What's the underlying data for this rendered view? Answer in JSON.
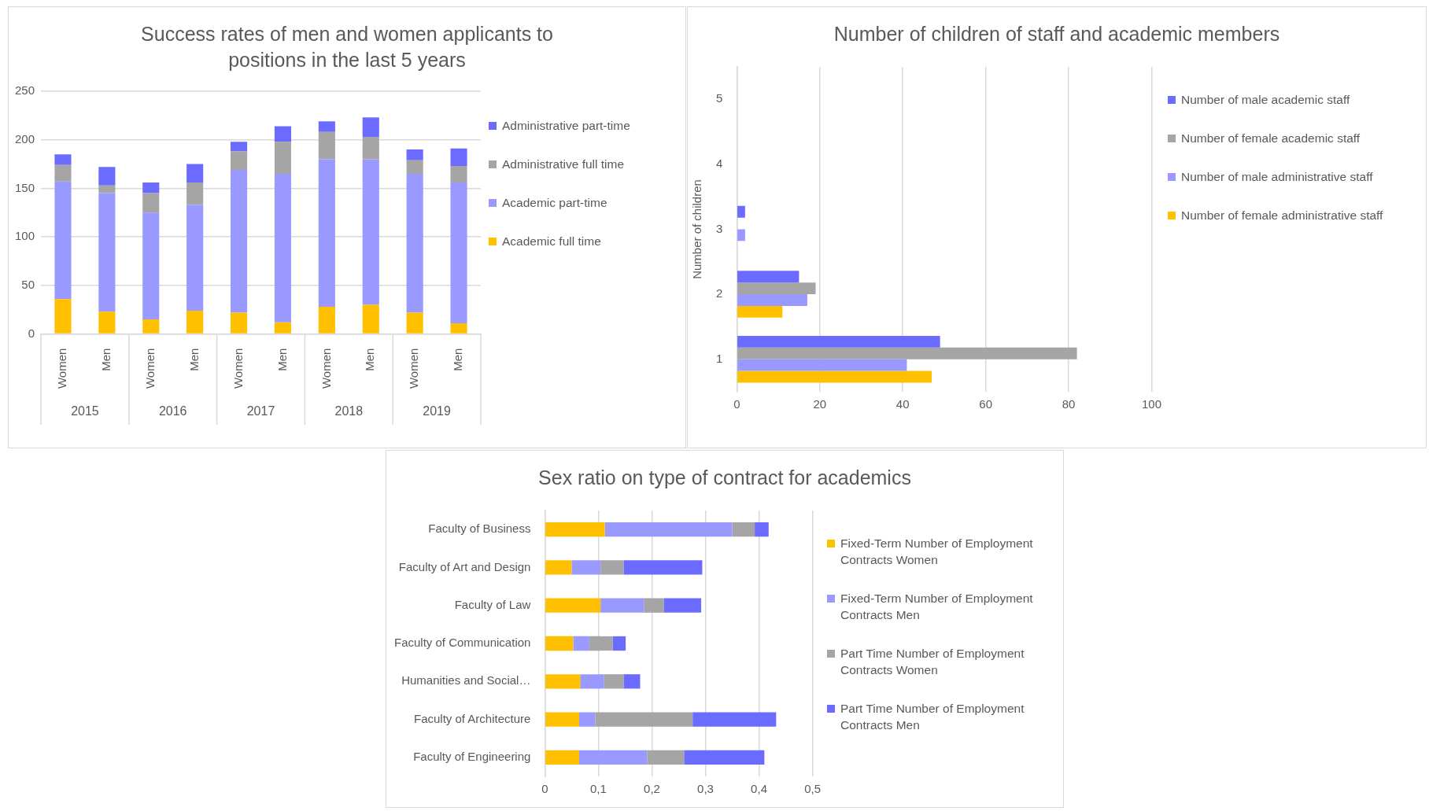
{
  "chart_data": [
    {
      "type": "bar",
      "title": "Success rates of men and women applicants to positions in the last 5 years",
      "stacked": true,
      "categories": [
        "Women",
        "Men",
        "Women",
        "Men",
        "Women",
        "Men",
        "Women",
        "Men",
        "Women",
        "Men"
      ],
      "annotations": [
        "2015",
        "2016",
        "2017",
        "2018",
        "2019"
      ],
      "ylim": [
        0,
        250
      ],
      "yticks": [
        0,
        50,
        100,
        150,
        200,
        250
      ],
      "grid": "y",
      "legend": "right",
      "series": [
        {
          "name": "Academic full time",
          "color": "#ffc000",
          "values": [
            36,
            23,
            15,
            24,
            22,
            12,
            28,
            30,
            22,
            11
          ]
        },
        {
          "name": "Academic part-time",
          "color": "#9999ff",
          "values": [
            121,
            122,
            110,
            109,
            147,
            153,
            152,
            150,
            143,
            145
          ]
        },
        {
          "name": "Administrative full time",
          "color": "#a5a5a5",
          "values": [
            17,
            8,
            20,
            23,
            19,
            33,
            28,
            23,
            14,
            17
          ]
        },
        {
          "name": "Administrative part-time",
          "color": "#6b6bff",
          "values": [
            11,
            19,
            11,
            19,
            10,
            16,
            11,
            20,
            11,
            18
          ]
        }
      ]
    },
    {
      "type": "bar",
      "title": "Number of children of staff and academic members",
      "orientation": "horizontal",
      "ylabel": "Number of children",
      "categories": [
        "5",
        "4",
        "3",
        "2",
        "1"
      ],
      "xlim": [
        0,
        100
      ],
      "xticks": [
        0,
        20,
        40,
        60,
        80,
        100
      ],
      "grid": "x",
      "legend": "right",
      "series": [
        {
          "name": "Number of male academic staff",
          "color": "#6b6bff",
          "values": [
            0,
            0,
            2,
            15,
            49
          ]
        },
        {
          "name": "Number of female academic staff",
          "color": "#a5a5a5",
          "values": [
            0,
            0,
            0,
            19,
            82
          ]
        },
        {
          "name": "Number of male administrative staff",
          "color": "#9999ff",
          "values": [
            0,
            0,
            2,
            17,
            41
          ]
        },
        {
          "name": "Number of female administrative staff",
          "color": "#ffc000",
          "values": [
            0,
            0,
            0,
            11,
            47
          ]
        }
      ]
    },
    {
      "type": "bar",
      "title": "Sex ratio on type of contract for academics",
      "orientation": "horizontal",
      "stacked": true,
      "categories": [
        "Faculty of Business",
        "Faculty of Art and Design",
        "Faculty of Law",
        "Faculty of Communication",
        "Humanities and Social…",
        "Faculty of Architecture",
        "Faculty of Engineering"
      ],
      "xlim": [
        0,
        0.5
      ],
      "xticks": [
        0,
        {
          "value": 0.1,
          "label": "0,1"
        },
        {
          "value": 0.2,
          "label": "0,2"
        },
        {
          "value": 0.3,
          "label": "0,3"
        },
        {
          "value": 0.4,
          "label": "0,4"
        },
        {
          "value": 0.5,
          "label": "0,5"
        }
      ],
      "grid": "x",
      "legend": "right",
      "series": [
        {
          "name": "Fixed-Term Number of Employment Contracts Women",
          "color": "#ffc000",
          "values": [
            0.112,
            0.05,
            0.104,
            0.053,
            0.066,
            0.064,
            0.064
          ]
        },
        {
          "name": "Fixed-Term Number of Employment Contracts Men",
          "color": "#9999ff",
          "values": [
            0.238,
            0.054,
            0.081,
            0.03,
            0.044,
            0.03,
            0.127
          ]
        },
        {
          "name": "Part Time Number of Employment Contracts Women",
          "color": "#a5a5a5",
          "values": [
            0.042,
            0.043,
            0.037,
            0.044,
            0.037,
            0.182,
            0.069
          ]
        },
        {
          "name": "Part Time Number of Employment Contracts Men",
          "color": "#6b6bff",
          "values": [
            0.026,
            0.147,
            0.07,
            0.024,
            0.031,
            0.156,
            0.15
          ]
        }
      ]
    }
  ]
}
